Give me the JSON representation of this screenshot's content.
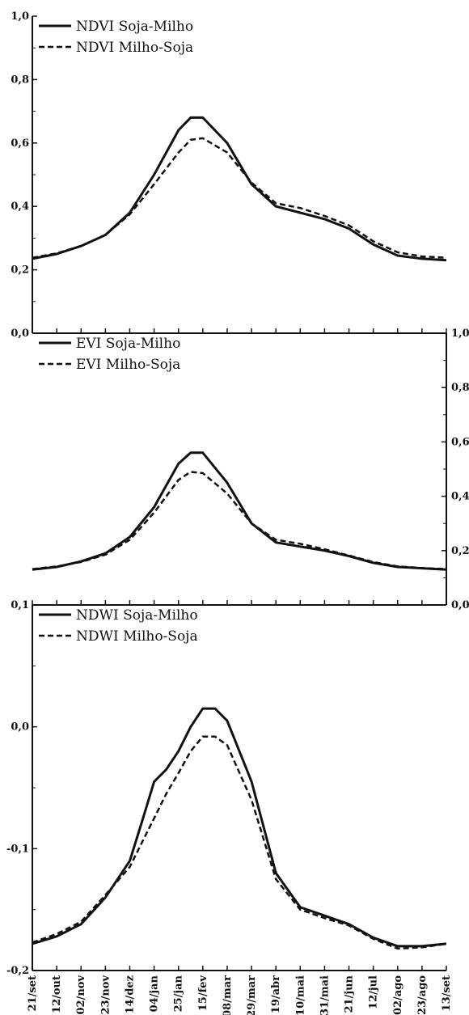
{
  "chart_data": [
    {
      "type": "line",
      "title": "",
      "xlabel": "",
      "ylabel": "",
      "ylim": [
        0,
        1.0
      ],
      "yticks": [
        "0,0",
        "0,2",
        "0,4",
        "0,6",
        "0,8",
        "1,0"
      ],
      "yaxis_side": "left",
      "legend_position": "top-left",
      "x": [
        0,
        1,
        2,
        3,
        4,
        5,
        6,
        6.5,
        7,
        8,
        9,
        10,
        11,
        12,
        13,
        14,
        15,
        16,
        17
      ],
      "series": [
        {
          "name": "NDVI Soja-Milho",
          "style": "solid",
          "values": [
            0.235,
            0.25,
            0.275,
            0.31,
            0.38,
            0.5,
            0.64,
            0.68,
            0.68,
            0.6,
            0.47,
            0.4,
            0.38,
            0.36,
            0.33,
            0.28,
            0.245,
            0.235,
            0.23
          ]
        },
        {
          "name": "NDVI Milho-Soja",
          "style": "dashed",
          "values": [
            0.238,
            0.252,
            0.275,
            0.31,
            0.375,
            0.47,
            0.57,
            0.61,
            0.615,
            0.57,
            0.475,
            0.41,
            0.395,
            0.37,
            0.34,
            0.29,
            0.255,
            0.242,
            0.238
          ]
        }
      ]
    },
    {
      "type": "line",
      "title": "",
      "xlabel": "",
      "ylabel": "",
      "ylim": [
        0,
        1.0
      ],
      "yticks": [
        "0,0",
        "0,2",
        "0,4",
        "0,6",
        "0,8",
        "1,0"
      ],
      "yaxis_side": "right",
      "legend_position": "top-left",
      "x": [
        0,
        1,
        2,
        3,
        4,
        5,
        6,
        6.5,
        7,
        8,
        9,
        10,
        11,
        12,
        13,
        14,
        15,
        16,
        17
      ],
      "series": [
        {
          "name": "EVI Soja-Milho",
          "style": "solid",
          "values": [
            0.13,
            0.14,
            0.16,
            0.19,
            0.25,
            0.36,
            0.52,
            0.56,
            0.56,
            0.45,
            0.3,
            0.23,
            0.215,
            0.2,
            0.18,
            0.155,
            0.14,
            0.135,
            0.13
          ]
        },
        {
          "name": "EVI Milho-Soja",
          "style": "dashed",
          "values": [
            0.132,
            0.142,
            0.158,
            0.185,
            0.24,
            0.34,
            0.46,
            0.49,
            0.485,
            0.41,
            0.3,
            0.24,
            0.225,
            0.205,
            0.182,
            0.158,
            0.142,
            0.136,
            0.132
          ]
        }
      ]
    },
    {
      "type": "line",
      "title": "",
      "xlabel": "",
      "ylabel": "",
      "ylim": [
        -0.2,
        0.1
      ],
      "yticks": [
        "-0,2",
        "-0,1",
        "0,0",
        "0,1"
      ],
      "yaxis_side": "left",
      "legend_position": "top-left",
      "categories": [
        "21/set",
        "12/out",
        "02/nov",
        "23/nov",
        "14/dez",
        "04/jan",
        "25/jan",
        "15/fev",
        "08/mar",
        "29/mar",
        "19/abr",
        "10/mai",
        "31/mai",
        "21/jun",
        "12/jul",
        "02/ago",
        "23/ago",
        "13/set"
      ],
      "x": [
        0,
        1,
        2,
        3,
        4,
        4.5,
        5,
        5.5,
        6,
        6.5,
        7,
        7.5,
        8,
        9,
        10,
        11,
        12,
        13,
        14,
        15,
        16,
        17
      ],
      "series": [
        {
          "name": "NDWI Soja-Milho",
          "style": "solid",
          "values": [
            -0.178,
            -0.172,
            -0.162,
            -0.14,
            -0.11,
            -0.078,
            -0.045,
            -0.035,
            -0.02,
            0.0,
            0.015,
            0.015,
            0.005,
            -0.045,
            -0.12,
            -0.148,
            -0.155,
            -0.162,
            -0.173,
            -0.18,
            -0.18,
            -0.178
          ]
        },
        {
          "name": "NDWI Milho-Soja",
          "style": "dashed",
          "values": [
            -0.177,
            -0.17,
            -0.16,
            -0.138,
            -0.115,
            -0.095,
            -0.075,
            -0.055,
            -0.038,
            -0.02,
            -0.008,
            -0.008,
            -0.015,
            -0.06,
            -0.125,
            -0.15,
            -0.157,
            -0.163,
            -0.174,
            -0.182,
            -0.181,
            -0.178
          ]
        }
      ]
    }
  ]
}
